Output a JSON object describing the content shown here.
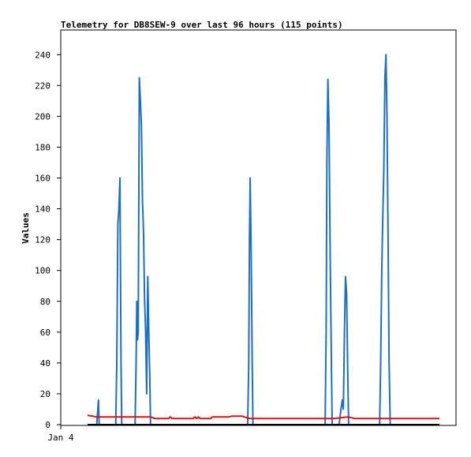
{
  "chart_data": {
    "type": "line",
    "title": "Telemetry for DB8SEW-9 over last 96 hours (115 points)",
    "xlabel": "",
    "ylabel": "Values",
    "x_ticks": [
      "Jan 4"
    ],
    "y_ticks": [
      0,
      20,
      40,
      60,
      80,
      100,
      120,
      140,
      160,
      180,
      200,
      220,
      240
    ],
    "ylim": [
      0,
      256
    ],
    "xlim": [
      0,
      100
    ],
    "grid": false,
    "legend": "none",
    "series": [
      {
        "color": "#1f6fc0",
        "points": [
          [
            0,
            0
          ],
          [
            2.6,
            0
          ],
          [
            3.1,
            16
          ],
          [
            3.3,
            0
          ],
          [
            8.0,
            0
          ],
          [
            8.3,
            40
          ],
          [
            8.6,
            130
          ],
          [
            8.9,
            140
          ],
          [
            9.2,
            160
          ],
          [
            9.5,
            40
          ],
          [
            9.7,
            0
          ],
          [
            13.5,
            0
          ],
          [
            13.8,
            40
          ],
          [
            14.0,
            80
          ],
          [
            14.2,
            55
          ],
          [
            14.4,
            60
          ],
          [
            14.7,
            225
          ],
          [
            15.0,
            210
          ],
          [
            15.3,
            195
          ],
          [
            15.6,
            145
          ],
          [
            15.9,
            125
          ],
          [
            16.2,
            80
          ],
          [
            16.5,
            60
          ],
          [
            16.8,
            20
          ],
          [
            17.1,
            96
          ],
          [
            17.4,
            60
          ],
          [
            17.7,
            30
          ],
          [
            17.9,
            0
          ],
          [
            45.5,
            0
          ],
          [
            45.8,
            40
          ],
          [
            46.0,
            120
          ],
          [
            46.2,
            160
          ],
          [
            46.5,
            110
          ],
          [
            46.8,
            40
          ],
          [
            47.0,
            0
          ],
          [
            67.5,
            0
          ],
          [
            67.8,
            60
          ],
          [
            68.0,
            170
          ],
          [
            68.3,
            224
          ],
          [
            68.6,
            195
          ],
          [
            68.9,
            120
          ],
          [
            69.2,
            60
          ],
          [
            69.5,
            0
          ],
          [
            71.5,
            0
          ],
          [
            72.0,
            10
          ],
          [
            72.4,
            16
          ],
          [
            72.7,
            10
          ],
          [
            73.0,
            60
          ],
          [
            73.3,
            96
          ],
          [
            73.6,
            85
          ],
          [
            73.9,
            40
          ],
          [
            74.2,
            0
          ],
          [
            83.0,
            0
          ],
          [
            83.3,
            40
          ],
          [
            83.6,
            100
          ],
          [
            83.9,
            135
          ],
          [
            84.2,
            165
          ],
          [
            84.5,
            225
          ],
          [
            84.8,
            240
          ],
          [
            85.1,
            200
          ],
          [
            85.4,
            120
          ],
          [
            85.7,
            40
          ],
          [
            86.0,
            0
          ],
          [
            100,
            0
          ]
        ]
      },
      {
        "color": "#e01010",
        "points": [
          [
            0,
            6
          ],
          [
            1.5,
            5.5
          ],
          [
            2.5,
            5
          ],
          [
            4,
            5
          ],
          [
            8,
            5
          ],
          [
            12,
            5
          ],
          [
            16,
            5
          ],
          [
            18,
            5
          ],
          [
            19,
            4
          ],
          [
            23,
            4
          ],
          [
            23.5,
            5
          ],
          [
            24,
            4
          ],
          [
            30,
            4
          ],
          [
            30.5,
            5
          ],
          [
            31,
            4
          ],
          [
            31.5,
            5
          ],
          [
            32,
            4
          ],
          [
            35,
            4
          ],
          [
            35.5,
            5
          ],
          [
            40,
            5
          ],
          [
            41,
            5.5
          ],
          [
            44,
            5.5
          ],
          [
            44.5,
            5
          ],
          [
            46,
            4
          ],
          [
            50,
            4
          ],
          [
            60,
            4
          ],
          [
            70,
            4
          ],
          [
            72,
            4.5
          ],
          [
            74,
            5
          ],
          [
            76,
            4
          ],
          [
            80,
            4
          ],
          [
            90,
            4
          ],
          [
            100,
            4
          ]
        ]
      },
      {
        "color": "#000000",
        "points": [
          [
            0,
            0
          ],
          [
            100,
            0
          ]
        ]
      }
    ]
  }
}
